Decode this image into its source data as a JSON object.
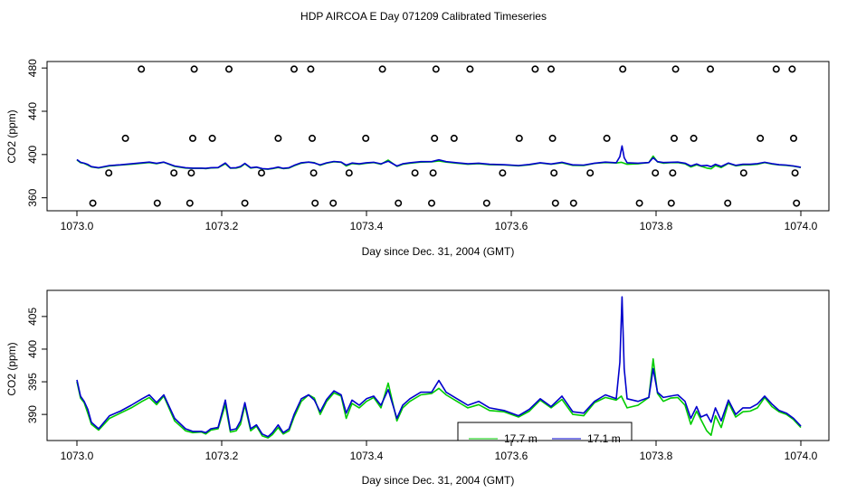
{
  "page_title": "HDP AIRCOA E  Day 071209  Calibrated Timeseries",
  "chart_data": [
    {
      "type": "scatter",
      "xlabel": "Day since Dec. 31, 2004 (GMT)",
      "ylabel": "CO2 (ppm)",
      "xlim": [
        1073.0,
        1074.0
      ],
      "ylim": [
        348,
        486
      ],
      "xticks": [
        "1073.0",
        "1073.2",
        "1073.4",
        "1073.6",
        "1073.8",
        "1074.0"
      ],
      "yticks": [
        "360",
        "400",
        "440",
        "480"
      ],
      "grid": false,
      "series": [
        {
          "color": "#00cc00",
          "values_source": "green_line"
        },
        {
          "color": "#0000cc",
          "values_source": "blue_line"
        }
      ],
      "calibration_points": [
        {
          "x": 1073.022,
          "y": 355
        },
        {
          "x": 1073.044,
          "y": 383
        },
        {
          "x": 1073.067,
          "y": 415
        },
        {
          "x": 1073.089,
          "y": 479
        },
        {
          "x": 1073.111,
          "y": 355
        },
        {
          "x": 1073.134,
          "y": 383
        },
        {
          "x": 1073.156,
          "y": 355
        },
        {
          "x": 1073.158,
          "y": 383
        },
        {
          "x": 1073.16,
          "y": 415
        },
        {
          "x": 1073.162,
          "y": 479
        },
        {
          "x": 1073.187,
          "y": 415
        },
        {
          "x": 1073.21,
          "y": 479
        },
        {
          "x": 1073.232,
          "y": 355
        },
        {
          "x": 1073.255,
          "y": 383
        },
        {
          "x": 1073.278,
          "y": 415
        },
        {
          "x": 1073.3,
          "y": 479
        },
        {
          "x": 1073.323,
          "y": 479
        },
        {
          "x": 1073.325,
          "y": 415
        },
        {
          "x": 1073.327,
          "y": 383
        },
        {
          "x": 1073.329,
          "y": 355
        },
        {
          "x": 1073.354,
          "y": 355
        },
        {
          "x": 1073.376,
          "y": 383
        },
        {
          "x": 1073.399,
          "y": 415
        },
        {
          "x": 1073.422,
          "y": 479
        },
        {
          "x": 1073.444,
          "y": 355
        },
        {
          "x": 1073.467,
          "y": 383
        },
        {
          "x": 1073.49,
          "y": 355
        },
        {
          "x": 1073.492,
          "y": 383
        },
        {
          "x": 1073.494,
          "y": 415
        },
        {
          "x": 1073.496,
          "y": 479
        },
        {
          "x": 1073.521,
          "y": 415
        },
        {
          "x": 1073.543,
          "y": 479
        },
        {
          "x": 1073.566,
          "y": 355
        },
        {
          "x": 1073.588,
          "y": 383
        },
        {
          "x": 1073.611,
          "y": 415
        },
        {
          "x": 1073.633,
          "y": 479
        },
        {
          "x": 1073.655,
          "y": 479
        },
        {
          "x": 1073.657,
          "y": 415
        },
        {
          "x": 1073.659,
          "y": 383
        },
        {
          "x": 1073.661,
          "y": 355
        },
        {
          "x": 1073.686,
          "y": 355
        },
        {
          "x": 1073.709,
          "y": 383
        },
        {
          "x": 1073.732,
          "y": 415
        },
        {
          "x": 1073.754,
          "y": 479
        },
        {
          "x": 1073.777,
          "y": 355
        },
        {
          "x": 1073.799,
          "y": 383
        },
        {
          "x": 1073.821,
          "y": 355
        },
        {
          "x": 1073.823,
          "y": 383
        },
        {
          "x": 1073.825,
          "y": 415
        },
        {
          "x": 1073.827,
          "y": 479
        },
        {
          "x": 1073.852,
          "y": 415
        },
        {
          "x": 1073.875,
          "y": 479
        },
        {
          "x": 1073.899,
          "y": 355
        },
        {
          "x": 1073.921,
          "y": 383
        },
        {
          "x": 1073.944,
          "y": 415
        },
        {
          "x": 1073.966,
          "y": 479
        },
        {
          "x": 1073.988,
          "y": 479
        },
        {
          "x": 1073.99,
          "y": 415
        },
        {
          "x": 1073.992,
          "y": 383
        },
        {
          "x": 1073.994,
          "y": 355
        }
      ]
    },
    {
      "type": "line",
      "xlabel": "Day since Dec. 31, 2004 (GMT)",
      "ylabel": "CO2 (ppm)",
      "xlim": [
        1073.0,
        1074.0
      ],
      "ylim": [
        386,
        409
      ],
      "xticks": [
        "1073.0",
        "1073.2",
        "1073.4",
        "1073.6",
        "1073.8",
        "1074.0"
      ],
      "yticks": [
        "390",
        "395",
        "400",
        "405"
      ],
      "grid": false,
      "legend_position": "bottom-center",
      "series": [
        {
          "name": "17.7 m",
          "color": "#00cc00",
          "x": [
            1073.0,
            1073.005,
            1073.01,
            1073.015,
            1073.02,
            1073.03,
            1073.045,
            1073.06,
            1073.075,
            1073.09,
            1073.1,
            1073.11,
            1073.12,
            1073.135,
            1073.15,
            1073.16,
            1073.172,
            1073.178,
            1073.185,
            1073.195,
            1073.205,
            1073.212,
            1073.22,
            1073.226,
            1073.232,
            1073.24,
            1073.248,
            1073.256,
            1073.264,
            1073.27,
            1073.278,
            1073.285,
            1073.293,
            1073.3,
            1073.31,
            1073.32,
            1073.328,
            1073.336,
            1073.345,
            1073.355,
            1073.365,
            1073.372,
            1073.38,
            1073.39,
            1073.4,
            1073.41,
            1073.42,
            1073.43,
            1073.442,
            1073.45,
            1073.46,
            1073.475,
            1073.49,
            1073.5,
            1073.51,
            1073.525,
            1073.54,
            1073.555,
            1073.57,
            1073.59,
            1073.61,
            1073.625,
            1073.64,
            1073.655,
            1073.67,
            1073.685,
            1073.7,
            1073.715,
            1073.73,
            1073.745,
            1073.752,
            1073.76,
            1073.775,
            1073.79,
            1073.796,
            1073.802,
            1073.81,
            1073.82,
            1073.83,
            1073.84,
            1073.848,
            1073.856,
            1073.862,
            1073.87,
            1073.876,
            1073.882,
            1073.89,
            1073.9,
            1073.91,
            1073.92,
            1073.93,
            1073.94,
            1073.95,
            1073.96,
            1073.97,
            1073.98,
            1073.99,
            1074.0
          ],
          "y": [
            395.0,
            392.5,
            391.8,
            390.2,
            388.5,
            387.6,
            389.4,
            390.2,
            391.0,
            392.0,
            392.6,
            391.5,
            392.8,
            389.0,
            387.5,
            387.2,
            387.3,
            387.0,
            387.6,
            387.8,
            391.5,
            387.3,
            387.5,
            388.5,
            391.4,
            387.5,
            388.2,
            386.7,
            386.4,
            386.9,
            388.0,
            387.0,
            387.5,
            389.6,
            392.0,
            393.0,
            392.5,
            390.0,
            392.0,
            393.3,
            392.8,
            389.4,
            391.7,
            391.0,
            392.0,
            392.6,
            391.0,
            394.8,
            389.0,
            391.0,
            392.0,
            393.0,
            393.2,
            394.0,
            393.0,
            392.0,
            391.0,
            391.5,
            390.6,
            390.4,
            389.6,
            390.5,
            392.2,
            391.0,
            392.3,
            390.0,
            389.8,
            391.8,
            392.6,
            392.2,
            392.8,
            391.0,
            391.4,
            392.6,
            398.5,
            393.2,
            392.0,
            392.5,
            392.6,
            391.4,
            388.5,
            390.5,
            389.2,
            387.5,
            386.8,
            389.8,
            388.0,
            391.8,
            389.6,
            390.4,
            390.5,
            391.0,
            392.6,
            391.2,
            390.4,
            390.0,
            389.2,
            388.0
          ]
        },
        {
          "name": "17.1 m",
          "color": "#0000cc",
          "x": [
            1073.0,
            1073.005,
            1073.01,
            1073.015,
            1073.02,
            1073.03,
            1073.045,
            1073.06,
            1073.075,
            1073.09,
            1073.1,
            1073.11,
            1073.12,
            1073.135,
            1073.15,
            1073.16,
            1073.172,
            1073.178,
            1073.185,
            1073.195,
            1073.205,
            1073.212,
            1073.22,
            1073.226,
            1073.232,
            1073.24,
            1073.248,
            1073.256,
            1073.264,
            1073.27,
            1073.278,
            1073.285,
            1073.293,
            1073.3,
            1073.31,
            1073.32,
            1073.328,
            1073.336,
            1073.345,
            1073.355,
            1073.365,
            1073.372,
            1073.38,
            1073.39,
            1073.4,
            1073.41,
            1073.42,
            1073.43,
            1073.442,
            1073.45,
            1073.46,
            1073.475,
            1073.49,
            1073.5,
            1073.51,
            1073.525,
            1073.54,
            1073.555,
            1073.57,
            1073.59,
            1073.61,
            1073.625,
            1073.64,
            1073.655,
            1073.67,
            1073.685,
            1073.7,
            1073.715,
            1073.73,
            1073.745,
            1073.75,
            1073.753,
            1073.756,
            1073.76,
            1073.775,
            1073.79,
            1073.796,
            1073.802,
            1073.81,
            1073.82,
            1073.83,
            1073.84,
            1073.848,
            1073.856,
            1073.862,
            1073.87,
            1073.876,
            1073.882,
            1073.89,
            1073.9,
            1073.91,
            1073.92,
            1073.93,
            1073.94,
            1073.95,
            1073.96,
            1073.97,
            1073.98,
            1073.99,
            1074.0
          ],
          "y": [
            395.3,
            392.8,
            392.0,
            390.8,
            388.8,
            387.8,
            389.8,
            390.5,
            391.4,
            392.4,
            393.0,
            391.8,
            393.0,
            389.4,
            387.8,
            387.4,
            387.4,
            387.2,
            387.8,
            388.0,
            392.2,
            387.6,
            387.8,
            389.0,
            391.8,
            387.8,
            388.4,
            387.0,
            386.6,
            387.2,
            388.4,
            387.2,
            387.8,
            390.0,
            392.4,
            393.0,
            392.2,
            390.4,
            392.3,
            393.6,
            393.0,
            390.2,
            392.2,
            391.4,
            392.4,
            392.8,
            391.4,
            393.8,
            389.4,
            391.4,
            392.4,
            393.4,
            393.4,
            395.2,
            393.4,
            392.4,
            391.4,
            392.0,
            391.0,
            390.6,
            389.8,
            390.8,
            392.4,
            391.2,
            392.8,
            390.4,
            390.2,
            392.0,
            393.0,
            392.4,
            398.0,
            408.0,
            397.0,
            392.4,
            392.0,
            392.6,
            397.0,
            393.4,
            392.6,
            392.8,
            393.0,
            392.0,
            389.4,
            391.2,
            389.6,
            390.0,
            388.8,
            391.0,
            389.0,
            392.2,
            390.0,
            391.0,
            391.0,
            391.6,
            392.8,
            391.6,
            390.6,
            390.2,
            389.4,
            388.2
          ]
        }
      ]
    }
  ]
}
